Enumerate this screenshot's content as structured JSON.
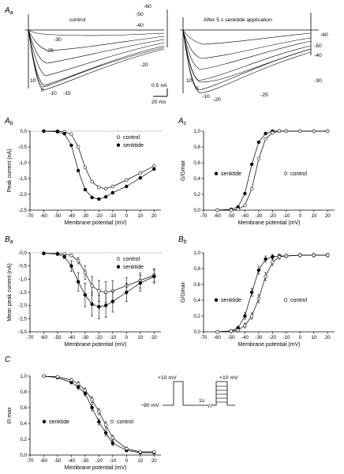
{
  "panels": {
    "Aa": {
      "letter": "A",
      "sub": "a"
    },
    "Ab": {
      "letter": "A",
      "sub": "b"
    },
    "Ac": {
      "letter": "A",
      "sub": "c"
    },
    "Ba": {
      "letter": "B",
      "sub": "a"
    },
    "Bb": {
      "letter": "B",
      "sub": "b"
    },
    "C": {
      "letter": "C",
      "sub": ""
    }
  },
  "traces": {
    "control": {
      "title": "control",
      "labels": [
        "-60",
        "-50",
        "-40",
        "-30",
        "-25",
        "-20",
        "10",
        "0",
        "-10",
        "-15"
      ]
    },
    "senktide": {
      "title": "After 5 s senktide application",
      "labels": [
        "-60",
        "-50",
        "-40",
        "-30",
        "10",
        "0",
        "-10",
        "-20",
        "-25"
      ]
    },
    "scalebar": {
      "current": "0.5 nA",
      "time": "20 ms"
    }
  },
  "protocol": {
    "v_hold": "−80 mV",
    "v_pre": "+10 mV",
    "v_test": "+10 mV",
    "gap": "1s"
  },
  "chart_data": [
    {
      "id": "Ab",
      "type": "line",
      "xlabel": "Membrane potential (mV)",
      "ylabel": "Peak current (nA)",
      "xlim": [
        -70,
        25
      ],
      "ylim": [
        -2.5,
        0.0
      ],
      "xticks": [
        -70,
        -60,
        -50,
        -40,
        -30,
        -20,
        -10,
        0,
        10,
        20
      ],
      "yticks": [
        0.0,
        -0.5,
        -1.0,
        -1.5,
        -2.0,
        -2.5
      ],
      "ytick_labels": [
        "0,0",
        "-0,5",
        "-1,0",
        "-1,5",
        "-2,0",
        "-2,5"
      ],
      "legend": "top-right",
      "zero_line": true,
      "series": [
        {
          "name": "control",
          "marker": "open",
          "x": [
            -60,
            -50,
            -45,
            -40,
            -35,
            -30,
            -25,
            -20,
            -15,
            -10,
            0,
            10,
            20
          ],
          "y": [
            0,
            0,
            -0.02,
            -0.1,
            -0.5,
            -1.15,
            -1.6,
            -1.78,
            -1.82,
            -1.75,
            -1.55,
            -1.33,
            -1.1
          ]
        },
        {
          "name": "senktide",
          "marker": "filled",
          "x": [
            -60,
            -50,
            -45,
            -40,
            -35,
            -30,
            -25,
            -20,
            -15,
            -10,
            0,
            10,
            20
          ],
          "y": [
            0,
            -0.02,
            -0.08,
            -0.45,
            -1.25,
            -1.85,
            -2.1,
            -2.15,
            -2.08,
            -1.95,
            -1.75,
            -1.48,
            -1.2
          ]
        }
      ]
    },
    {
      "id": "Ac",
      "type": "line",
      "xlabel": "Membrane potential (mV)",
      "ylabel": "G/Gmax",
      "xlim": [
        -70,
        25
      ],
      "ylim": [
        0,
        1.0
      ],
      "xticks": [
        -70,
        -60,
        -50,
        -40,
        -30,
        -20,
        -10,
        0,
        10,
        20
      ],
      "yticks": [
        0,
        0.2,
        0.4,
        0.6,
        0.8,
        1.0
      ],
      "ytick_labels": [
        "0,0",
        "0,2",
        "0,4",
        "0,6",
        "0,8",
        "1,0"
      ],
      "legend": "inline",
      "series": [
        {
          "name": "senktide",
          "marker": "filled",
          "x": [
            -60,
            -50,
            -45,
            -40,
            -35,
            -30,
            -25,
            -20,
            -15,
            -10,
            0,
            10,
            20
          ],
          "y": [
            0,
            0.01,
            0.04,
            0.21,
            0.58,
            0.86,
            0.97,
            1.0,
            1.0,
            1.0,
            1.0,
            1.0,
            1.0
          ]
        },
        {
          "name": "control",
          "marker": "open",
          "x": [
            -60,
            -50,
            -45,
            -40,
            -35,
            -30,
            -25,
            -20,
            -15,
            -10,
            0,
            10,
            20
          ],
          "y": [
            0,
            0,
            0.01,
            0.06,
            0.27,
            0.65,
            0.9,
            0.98,
            1.0,
            1.0,
            1.0,
            1.0,
            1.0
          ]
        }
      ]
    },
    {
      "id": "Ba",
      "type": "line",
      "xlabel": "Membrane potential (mV)",
      "ylabel": "Mean peak current (nA)",
      "xlim": [
        -70,
        25
      ],
      "ylim": [
        -3.0,
        0.0
      ],
      "xticks": [
        -70,
        -60,
        -50,
        -40,
        -30,
        -20,
        -10,
        0,
        10,
        20
      ],
      "yticks": [
        0.0,
        -0.5,
        -1.0,
        -1.5,
        -2.0,
        -2.5,
        -3.0
      ],
      "ytick_labels": [
        "-0,0",
        "-0,5",
        "-1,0",
        "-1,5",
        "-2,0",
        "-2,5",
        "-3,0"
      ],
      "legend": "top-right",
      "zero_line": true,
      "series": [
        {
          "name": "control",
          "marker": "open",
          "x": [
            -60,
            -50,
            -45,
            -40,
            -35,
            -30,
            -25,
            -20,
            -15,
            -10,
            0,
            10,
            20
          ],
          "y": [
            -0.02,
            -0.03,
            -0.05,
            -0.1,
            -0.3,
            -0.75,
            -1.25,
            -1.45,
            -1.5,
            -1.45,
            -1.25,
            -1.05,
            -0.85
          ],
          "err": [
            0,
            0,
            0.02,
            0.05,
            0.12,
            0.25,
            0.35,
            0.4,
            0.4,
            0.38,
            0.3,
            0.28,
            0.25
          ]
        },
        {
          "name": "senktide",
          "marker": "filled",
          "x": [
            -60,
            -50,
            -45,
            -40,
            -35,
            -30,
            -25,
            -20,
            -15,
            -10,
            0,
            10,
            20
          ],
          "y": [
            -0.02,
            -0.05,
            -0.15,
            -0.5,
            -1.1,
            -1.6,
            -1.95,
            -2.05,
            -2.0,
            -1.85,
            -1.5,
            -1.15,
            -0.9
          ],
          "err": [
            0.01,
            0.02,
            0.07,
            0.2,
            0.35,
            0.45,
            0.45,
            0.45,
            0.45,
            0.4,
            0.35,
            0.3,
            0.25
          ]
        }
      ]
    },
    {
      "id": "Bb",
      "type": "line",
      "xlabel": "Membrane potential (mV)",
      "ylabel": "G/Gmax",
      "xlim": [
        -70,
        25
      ],
      "ylim": [
        0,
        1.0
      ],
      "xticks": [
        -70,
        -60,
        -50,
        -40,
        -30,
        -20,
        -10,
        0,
        10,
        20
      ],
      "yticks": [
        0,
        0.2,
        0.4,
        0.6,
        0.8,
        1.0
      ],
      "ytick_labels": [
        "0,0",
        "0,2",
        "0,4",
        "0,6",
        "0,8",
        "1,0"
      ],
      "legend": "inline",
      "series": [
        {
          "name": "senktide",
          "marker": "filled",
          "x": [
            -60,
            -50,
            -45,
            -40,
            -35,
            -30,
            -25,
            -20,
            -15,
            -10,
            0,
            10,
            20
          ],
          "y": [
            0,
            0.01,
            0.05,
            0.2,
            0.5,
            0.78,
            0.92,
            0.95,
            0.96,
            0.96,
            0.97,
            0.97,
            0.97
          ],
          "err": [
            0,
            0.01,
            0.02,
            0.04,
            0.05,
            0.05,
            0.04,
            0.03,
            0.02,
            0.02,
            0.02,
            0.02,
            0.02
          ]
        },
        {
          "name": "control",
          "marker": "open",
          "x": [
            -60,
            -50,
            -45,
            -40,
            -35,
            -30,
            -25,
            -20,
            -15,
            -10,
            0,
            10,
            20
          ],
          "y": [
            0,
            0.01,
            0.02,
            0.08,
            0.2,
            0.42,
            0.7,
            0.88,
            0.95,
            0.96,
            0.97,
            0.97,
            0.97
          ],
          "err": [
            0,
            0.01,
            0.02,
            0.03,
            0.04,
            0.05,
            0.05,
            0.04,
            0.03,
            0.02,
            0.02,
            0.02,
            0.02
          ]
        }
      ]
    },
    {
      "id": "C",
      "type": "line",
      "xlabel": "Membrane potential (mV)",
      "ylabel": "I/I max",
      "xlim": [
        -70,
        25
      ],
      "ylim": [
        0,
        1.0
      ],
      "xticks": [
        -70,
        -60,
        -50,
        -40,
        -30,
        -20,
        -10,
        0,
        10,
        20
      ],
      "yticks": [
        0,
        0.2,
        0.4,
        0.6,
        0.8,
        1.0
      ],
      "ytick_labels": [
        "0,0",
        "0,2",
        "0,4",
        "0,6",
        "0,8",
        "1,0"
      ],
      "legend": "inline",
      "series": [
        {
          "name": "senktide",
          "marker": "filled",
          "x": [
            -60,
            -50,
            -40,
            -35,
            -30,
            -25,
            -20,
            -15,
            -10,
            0,
            10,
            20
          ],
          "y": [
            1.0,
            0.98,
            0.92,
            0.86,
            0.78,
            0.6,
            0.42,
            0.28,
            0.15,
            0.06,
            0.03,
            0.03
          ],
          "err": [
            0,
            0.01,
            0.02,
            0.03,
            0.03,
            0.04,
            0.04,
            0.04,
            0.03,
            0.02,
            0.01,
            0.01
          ]
        },
        {
          "name": "control",
          "marker": "open",
          "x": [
            -60,
            -50,
            -40,
            -35,
            -30,
            -25,
            -20,
            -15,
            -10,
            0,
            10,
            20
          ],
          "y": [
            1.0,
            0.99,
            0.95,
            0.9,
            0.82,
            0.7,
            0.55,
            0.38,
            0.22,
            0.08,
            0.04,
            0.04
          ],
          "err": [
            0,
            0.01,
            0.02,
            0.03,
            0.03,
            0.04,
            0.04,
            0.04,
            0.03,
            0.02,
            0.01,
            0.01
          ]
        }
      ]
    }
  ]
}
